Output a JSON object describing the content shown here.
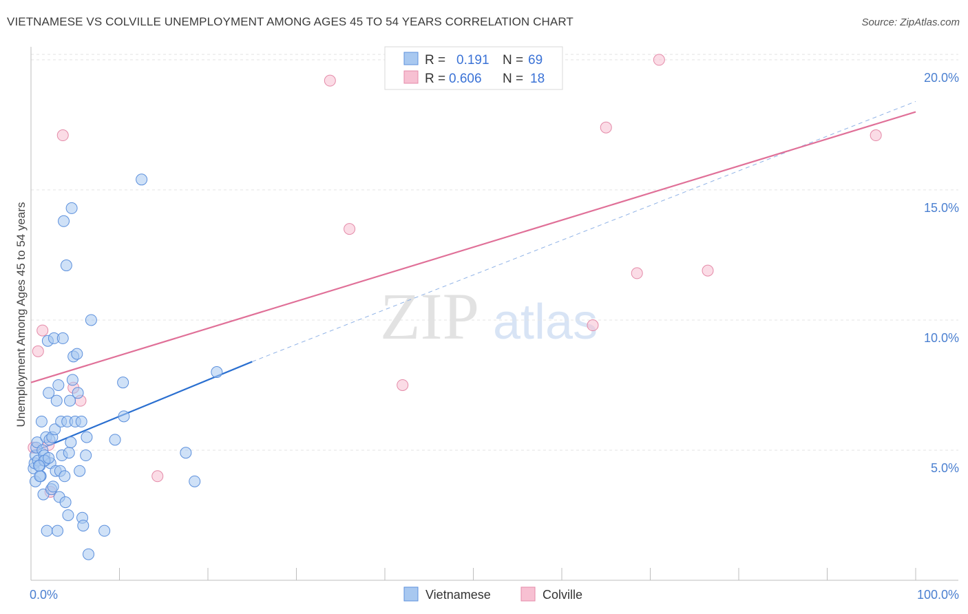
{
  "title": "VIETNAMESE VS COLVILLE UNEMPLOYMENT AMONG AGES 45 TO 54 YEARS CORRELATION CHART",
  "source": "Source: ZipAtlas.com",
  "watermark": {
    "zip": "ZIP",
    "atlas": "atlas"
  },
  "colors": {
    "vietnamese_fill": "#a8c8f0",
    "vietnamese_stroke": "#5b8fdc",
    "vietnamese_line": "#2a6fd0",
    "colville_fill": "#f7c0d2",
    "colville_stroke": "#e48aa8",
    "colville_line": "#e07098",
    "grid": "#e3e3e3",
    "axis_text": "#4a7fd0"
  },
  "chart_data": {
    "type": "scatter",
    "title": "VIETNAMESE VS COLVILLE UNEMPLOYMENT AMONG AGES 45 TO 54 YEARS CORRELATION CHART",
    "xlabel": "",
    "ylabel": "Unemployment Among Ages 45 to 54 years",
    "xlim": [
      0,
      100
    ],
    "ylim": [
      0,
      20.5
    ],
    "x_tick_labels": [
      "0.0%",
      "100.0%"
    ],
    "y_ticks": [
      5,
      10,
      15,
      20
    ],
    "y_tick_labels": [
      "5.0%",
      "10.0%",
      "15.0%",
      "20.0%"
    ],
    "legend": [
      {
        "name": "Vietnamese",
        "r_label": "R =",
        "r_value": "0.191",
        "n_label": "N =",
        "n_value": "69"
      },
      {
        "name": "Colville",
        "r_label": "R =",
        "r_value": "0.606",
        "n_label": "N =",
        "n_value": "18"
      }
    ],
    "series": [
      {
        "name": "Vietnamese",
        "points": [
          [
            0.3,
            4.3
          ],
          [
            0.4,
            4.5
          ],
          [
            0.5,
            4.8
          ],
          [
            0.6,
            5.1
          ],
          [
            0.7,
            5.3
          ],
          [
            0.5,
            3.8
          ],
          [
            0.8,
            4.6
          ],
          [
            1.0,
            4.4
          ],
          [
            1.1,
            4.0
          ],
          [
            1.2,
            6.1
          ],
          [
            1.3,
            5.0
          ],
          [
            1.4,
            3.3
          ],
          [
            1.5,
            4.8
          ],
          [
            1.6,
            4.6
          ],
          [
            1.7,
            5.5
          ],
          [
            1.8,
            1.9
          ],
          [
            1.9,
            9.2
          ],
          [
            2.0,
            7.2
          ],
          [
            2.1,
            5.4
          ],
          [
            2.2,
            4.5
          ],
          [
            2.3,
            3.5
          ],
          [
            2.4,
            5.5
          ],
          [
            2.5,
            3.6
          ],
          [
            2.6,
            9.3
          ],
          [
            2.7,
            5.8
          ],
          [
            2.8,
            4.2
          ],
          [
            2.9,
            6.9
          ],
          [
            3.0,
            1.9
          ],
          [
            3.1,
            7.5
          ],
          [
            3.2,
            3.2
          ],
          [
            3.3,
            4.2
          ],
          [
            3.4,
            6.1
          ],
          [
            3.5,
            4.8
          ],
          [
            3.6,
            9.3
          ],
          [
            3.7,
            13.8
          ],
          [
            3.8,
            4.0
          ],
          [
            3.9,
            3.0
          ],
          [
            4.0,
            12.1
          ],
          [
            4.1,
            6.1
          ],
          [
            4.2,
            2.5
          ],
          [
            4.3,
            4.9
          ],
          [
            4.4,
            6.9
          ],
          [
            4.5,
            5.3
          ],
          [
            4.6,
            14.3
          ],
          [
            4.7,
            7.7
          ],
          [
            4.8,
            8.6
          ],
          [
            5.0,
            6.1
          ],
          [
            5.2,
            8.7
          ],
          [
            5.3,
            7.2
          ],
          [
            5.5,
            4.2
          ],
          [
            5.7,
            6.1
          ],
          [
            5.8,
            2.4
          ],
          [
            5.9,
            2.1
          ],
          [
            6.2,
            4.8
          ],
          [
            6.3,
            5.5
          ],
          [
            6.5,
            1.0
          ],
          [
            6.8,
            10.0
          ],
          [
            8.3,
            1.9
          ],
          [
            9.5,
            5.4
          ],
          [
            10.4,
            7.6
          ],
          [
            10.5,
            6.3
          ],
          [
            12.5,
            15.4
          ],
          [
            17.5,
            4.9
          ],
          [
            18.5,
            3.8
          ],
          [
            21.0,
            8.0
          ],
          [
            1.0,
            4.0
          ],
          [
            1.5,
            4.6
          ],
          [
            0.9,
            4.4
          ],
          [
            2.0,
            4.7
          ]
        ],
        "trend": {
          "x": [
            0,
            25
          ],
          "y": [
            4.9,
            8.4
          ],
          "dashed_extension": {
            "x": [
              25,
              100
            ],
            "y": [
              8.4,
              18.4
            ]
          }
        }
      },
      {
        "name": "Colville",
        "points": [
          [
            0.8,
            8.8
          ],
          [
            1.3,
            9.6
          ],
          [
            2.0,
            5.2
          ],
          [
            2.2,
            3.4
          ],
          [
            3.6,
            17.1
          ],
          [
            4.8,
            7.4
          ],
          [
            5.6,
            6.9
          ],
          [
            14.3,
            4.0
          ],
          [
            33.8,
            19.2
          ],
          [
            36.0,
            13.5
          ],
          [
            42.0,
            7.5
          ],
          [
            63.5,
            9.8
          ],
          [
            65.0,
            17.4
          ],
          [
            68.5,
            11.8
          ],
          [
            71.0,
            20.0
          ],
          [
            76.5,
            11.9
          ],
          [
            95.5,
            17.1
          ],
          [
            0.3,
            5.1
          ]
        ],
        "trend": {
          "x": [
            0,
            100
          ],
          "y": [
            7.6,
            18.0
          ]
        }
      }
    ]
  }
}
